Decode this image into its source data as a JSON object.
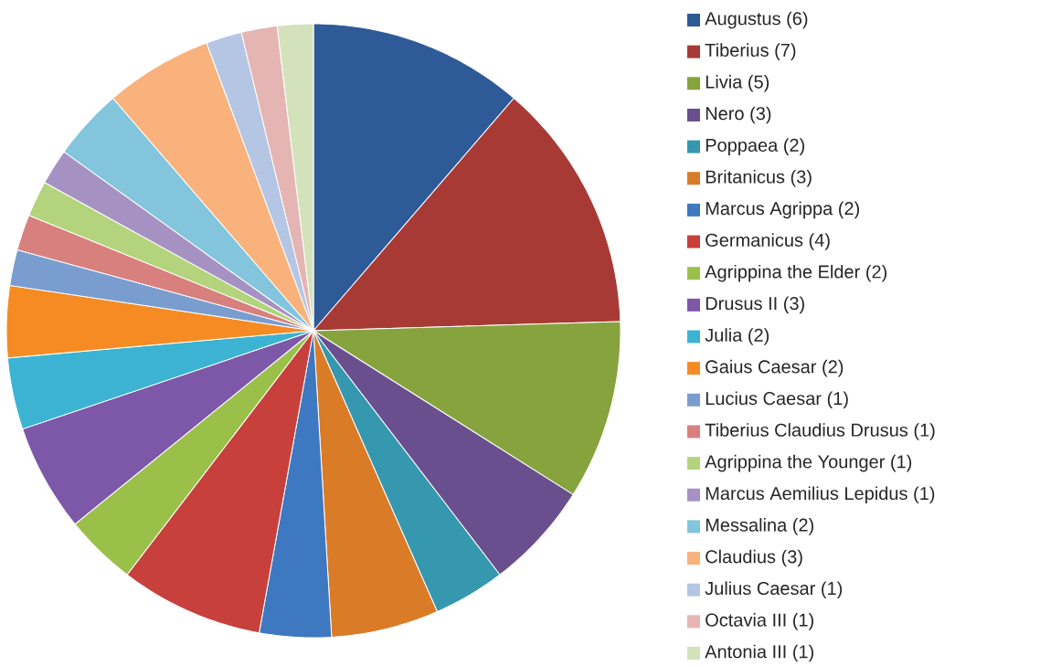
{
  "chart_data": {
    "type": "pie",
    "categories": [
      "Augustus (6)",
      "Tiberius (7)",
      "Livia (5)",
      "Nero (3)",
      "Poppaea (2)",
      "Britanicus (3)",
      "Marcus Agrippa (2)",
      "Germanicus (4)",
      "Agrippina the Elder (2)",
      "Drusus II (3)",
      "Julia (2)",
      "Gaius Caesar (2)",
      "Lucius Caesar (1)",
      "Tiberius Claudius Drusus (1)",
      "Agrippina the Younger (1)",
      "Marcus Aemilius Lepidus (1)",
      "Messalina (2)",
      "Claudius (3)",
      "Julius Caesar (1)",
      "Octavia III (1)",
      "Antonia III (1)"
    ],
    "values": [
      6,
      7,
      5,
      3,
      2,
      3,
      2,
      4,
      2,
      3,
      2,
      2,
      1,
      1,
      1,
      1,
      2,
      3,
      1,
      1,
      1
    ],
    "colors": [
      "#2E5A97",
      "#A83A36",
      "#86A33E",
      "#6A4F8E",
      "#3698AE",
      "#DA7B27",
      "#3E78C1",
      "#C7403C",
      "#9BC04A",
      "#7D57A8",
      "#3CB3D3",
      "#F58B22",
      "#7A9DD0",
      "#D7807E",
      "#B3D47C",
      "#A692C2",
      "#82C5DC",
      "#F9B27C",
      "#B4C6E3",
      "#E5B5B4",
      "#D3E2BA"
    ],
    "legend": "right"
  }
}
